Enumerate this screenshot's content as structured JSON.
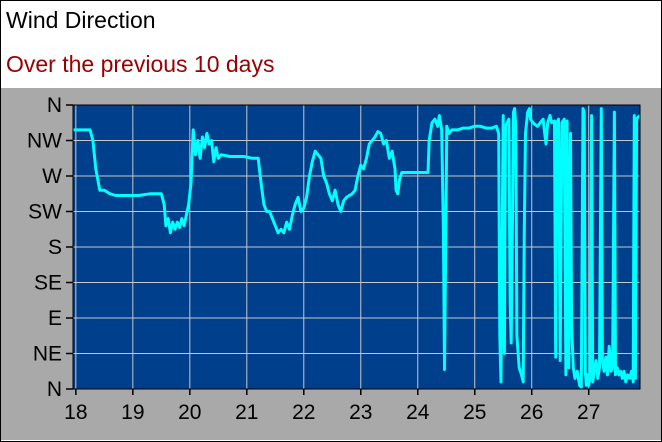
{
  "title": "Wind Direction",
  "subtitle": "Over the previous 10 days",
  "chart_data": {
    "type": "line",
    "title": "Wind Direction",
    "subtitle": "Over the previous 10 days",
    "xlabel": "",
    "ylabel": "",
    "xlim": [
      17.95,
      27.9
    ],
    "ylim": [
      0,
      8
    ],
    "x_ticks": [
      18,
      19,
      20,
      21,
      22,
      23,
      24,
      25,
      26,
      27
    ],
    "x_tick_labels": [
      "18",
      "19",
      "20",
      "21",
      "22",
      "23",
      "24",
      "25",
      "26",
      "27"
    ],
    "y_ticks": [
      0,
      1,
      2,
      3,
      4,
      5,
      6,
      7,
      8
    ],
    "y_tick_labels": [
      "N",
      "NE",
      "E",
      "SE",
      "S",
      "SW",
      "W",
      "NW",
      "N"
    ],
    "grid": true,
    "colors": {
      "background": "#003f8c",
      "line": "#00ffff",
      "grid": "#c8c8c8",
      "panel": "#a9a9a9",
      "subtitle": "#990000"
    },
    "series": [
      {
        "values": [
          [
            17.95,
            7.3
          ],
          [
            18.15,
            7.3
          ],
          [
            18.25,
            7.3
          ],
          [
            18.3,
            7.0
          ],
          [
            18.35,
            6.2
          ],
          [
            18.42,
            5.6
          ],
          [
            18.5,
            5.6
          ],
          [
            18.6,
            5.5
          ],
          [
            18.7,
            5.45
          ],
          [
            18.9,
            5.45
          ],
          [
            19.1,
            5.45
          ],
          [
            19.3,
            5.5
          ],
          [
            19.5,
            5.5
          ],
          [
            19.55,
            5.2
          ],
          [
            19.58,
            4.6
          ],
          [
            19.62,
            4.8
          ],
          [
            19.66,
            4.4
          ],
          [
            19.7,
            4.7
          ],
          [
            19.74,
            4.5
          ],
          [
            19.78,
            4.7
          ],
          [
            19.82,
            4.55
          ],
          [
            19.86,
            4.8
          ],
          [
            19.9,
            4.6
          ],
          [
            19.94,
            4.9
          ],
          [
            19.98,
            5.2
          ],
          [
            20.02,
            5.8
          ],
          [
            20.06,
            7.3
          ],
          [
            20.1,
            6.6
          ],
          [
            20.14,
            7.0
          ],
          [
            20.18,
            6.5
          ],
          [
            20.22,
            7.1
          ],
          [
            20.26,
            6.8
          ],
          [
            20.3,
            7.2
          ],
          [
            20.34,
            6.9
          ],
          [
            20.38,
            7.0
          ],
          [
            20.42,
            6.4
          ],
          [
            20.46,
            6.8
          ],
          [
            20.5,
            6.5
          ],
          [
            20.55,
            6.6
          ],
          [
            20.7,
            6.55
          ],
          [
            20.8,
            6.55
          ],
          [
            20.95,
            6.55
          ],
          [
            21.1,
            6.5
          ],
          [
            21.2,
            6.5
          ],
          [
            21.25,
            5.8
          ],
          [
            21.3,
            5.2
          ],
          [
            21.35,
            5.0
          ],
          [
            21.4,
            5.0
          ],
          [
            21.45,
            4.8
          ],
          [
            21.5,
            4.6
          ],
          [
            21.55,
            4.4
          ],
          [
            21.6,
            4.5
          ],
          [
            21.65,
            4.4
          ],
          [
            21.7,
            4.7
          ],
          [
            21.75,
            4.5
          ],
          [
            21.8,
            4.9
          ],
          [
            21.85,
            5.2
          ],
          [
            21.9,
            5.4
          ],
          [
            21.95,
            5.0
          ],
          [
            22.0,
            5.1
          ],
          [
            22.05,
            5.4
          ],
          [
            22.1,
            6.0
          ],
          [
            22.15,
            6.4
          ],
          [
            22.2,
            6.7
          ],
          [
            22.25,
            6.6
          ],
          [
            22.3,
            6.5
          ],
          [
            22.35,
            6.0
          ],
          [
            22.4,
            5.8
          ],
          [
            22.45,
            5.5
          ],
          [
            22.5,
            5.3
          ],
          [
            22.55,
            5.6
          ],
          [
            22.6,
            5.2
          ],
          [
            22.65,
            5.0
          ],
          [
            22.7,
            5.3
          ],
          [
            22.75,
            5.4
          ],
          [
            22.8,
            5.45
          ],
          [
            22.85,
            5.5
          ],
          [
            22.9,
            5.6
          ],
          [
            22.95,
            6.0
          ],
          [
            23.0,
            6.3
          ],
          [
            23.05,
            6.2
          ],
          [
            23.1,
            6.5
          ],
          [
            23.15,
            6.9
          ],
          [
            23.2,
            7.0
          ],
          [
            23.25,
            7.1
          ],
          [
            23.3,
            7.25
          ],
          [
            23.35,
            7.2
          ],
          [
            23.4,
            6.9
          ],
          [
            23.45,
            7.0
          ],
          [
            23.5,
            6.5
          ],
          [
            23.55,
            6.7
          ],
          [
            23.6,
            6.2
          ],
          [
            23.62,
            5.6
          ],
          [
            23.65,
            5.5
          ],
          [
            23.68,
            5.9
          ],
          [
            23.72,
            6.1
          ],
          [
            23.8,
            6.1
          ],
          [
            23.9,
            6.1
          ],
          [
            24.0,
            6.1
          ],
          [
            24.1,
            6.1
          ],
          [
            24.18,
            6.1
          ],
          [
            24.2,
            7.0
          ],
          [
            24.25,
            7.5
          ],
          [
            24.3,
            7.6
          ],
          [
            24.35,
            7.4
          ],
          [
            24.38,
            7.7
          ],
          [
            24.42,
            7.3
          ],
          [
            24.45,
            4.5
          ],
          [
            24.47,
            0.55
          ],
          [
            24.49,
            4.0
          ],
          [
            24.51,
            7.4
          ],
          [
            24.55,
            7.2
          ],
          [
            24.6,
            7.3
          ],
          [
            24.7,
            7.3
          ],
          [
            24.8,
            7.35
          ],
          [
            24.9,
            7.35
          ],
          [
            25.0,
            7.4
          ],
          [
            25.1,
            7.4
          ],
          [
            25.2,
            7.35
          ],
          [
            25.3,
            7.35
          ],
          [
            25.38,
            7.4
          ],
          [
            25.42,
            7.2
          ],
          [
            25.44,
            1.5
          ],
          [
            25.46,
            0.2
          ],
          [
            25.48,
            4.0
          ],
          [
            25.5,
            7.7
          ],
          [
            25.52,
            1.0
          ],
          [
            25.54,
            7.4
          ],
          [
            25.6,
            7.6
          ],
          [
            25.62,
            2.5
          ],
          [
            25.64,
            1.3
          ],
          [
            25.66,
            4.5
          ],
          [
            25.68,
            7.8
          ],
          [
            25.7,
            7.9
          ],
          [
            25.72,
            7.4
          ],
          [
            25.74,
            1.5
          ],
          [
            25.78,
            0.6
          ],
          [
            25.82,
            0.4
          ],
          [
            25.85,
            0.2
          ],
          [
            25.87,
            4.5
          ],
          [
            25.89,
            7.2
          ],
          [
            25.93,
            7.8
          ],
          [
            25.96,
            7.9
          ],
          [
            25.98,
            7.6
          ],
          [
            26.02,
            7.5
          ],
          [
            26.1,
            7.4
          ],
          [
            26.2,
            7.6
          ],
          [
            26.22,
            7.3
          ],
          [
            26.25,
            6.9
          ],
          [
            26.28,
            7.5
          ],
          [
            26.32,
            7.7
          ],
          [
            26.35,
            7.5
          ],
          [
            26.4,
            7.55
          ],
          [
            26.42,
            0.9
          ],
          [
            26.44,
            7.5
          ],
          [
            26.47,
            7.6
          ],
          [
            26.5,
            0.8
          ],
          [
            26.53,
            7.5
          ],
          [
            26.57,
            7.6
          ],
          [
            26.6,
            0.4
          ],
          [
            26.62,
            7.55
          ],
          [
            26.65,
            0.6
          ],
          [
            26.68,
            7.2
          ],
          [
            26.7,
            1.8
          ],
          [
            26.73,
            0.6
          ],
          [
            26.76,
            0.3
          ],
          [
            26.8,
            0.5
          ],
          [
            26.84,
            0.1
          ],
          [
            26.87,
            0.05
          ],
          [
            26.9,
            7.9
          ],
          [
            26.92,
            7.8
          ],
          [
            26.94,
            0.5
          ],
          [
            26.96,
            0.1
          ],
          [
            26.98,
            0.4
          ],
          [
            27.0,
            0.1
          ],
          [
            27.02,
            0.3
          ],
          [
            27.05,
            7.7
          ],
          [
            27.07,
            0.2
          ],
          [
            27.1,
            0.5
          ],
          [
            27.13,
            0.8
          ],
          [
            27.16,
            0.3
          ],
          [
            27.19,
            0.6
          ],
          [
            27.22,
            7.9
          ],
          [
            27.24,
            0.8
          ],
          [
            27.27,
            0.5
          ],
          [
            27.3,
            0.9
          ],
          [
            27.33,
            0.4
          ],
          [
            27.36,
            1.2
          ],
          [
            27.39,
            0.5
          ],
          [
            27.42,
            0.6
          ],
          [
            27.45,
            7.8
          ],
          [
            27.47,
            0.4
          ],
          [
            27.5,
            0.6
          ],
          [
            27.53,
            0.4
          ],
          [
            27.56,
            0.5
          ],
          [
            27.59,
            0.3
          ],
          [
            27.62,
            0.5
          ],
          [
            27.65,
            0.2
          ],
          [
            27.68,
            0.4
          ],
          [
            27.72,
            0.3
          ],
          [
            27.75,
            0.5
          ],
          [
            27.78,
            0.2
          ],
          [
            27.8,
            7.7
          ],
          [
            27.82,
            0.3
          ],
          [
            27.84,
            7.6
          ],
          [
            27.86,
            7.65
          ],
          [
            27.9,
            7.7
          ]
        ]
      }
    ]
  }
}
